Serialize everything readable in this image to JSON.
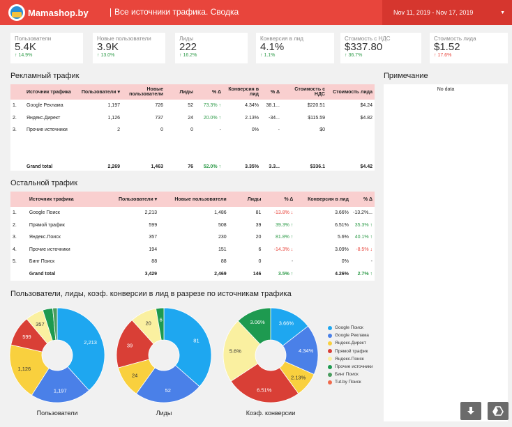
{
  "header": {
    "logo_text": "Mamashop.by",
    "title": "Все источники трафика. Сводка",
    "date_range": "Nov 11, 2019 - Nov 17, 2019"
  },
  "kpis": [
    {
      "label": "Пользователи",
      "value": "5.4K",
      "delta": "↑ 14.9%",
      "dir": "up"
    },
    {
      "label": "Новые пользователи",
      "value": "3.9K",
      "delta": "↑ 13.0%",
      "dir": "up"
    },
    {
      "label": "Лиды",
      "value": "222",
      "delta": "↑ 16.2%",
      "dir": "up"
    },
    {
      "label": "Конверсия в лид",
      "value": "4.1%",
      "delta": "↑ 1.1%",
      "dir": "up"
    },
    {
      "label": "Стоимость с НДС",
      "value": "$337.80",
      "delta": "↑ 36.7%",
      "dir": "up"
    },
    {
      "label": "Стоимость лида",
      "value": "$1.52",
      "delta": "↑ 17.6%",
      "dir": "down"
    }
  ],
  "ads": {
    "title": "Рекламный трафик",
    "headers": [
      "",
      "Источник трафика",
      "Пользователи ▾",
      "Новые пользователи",
      "Лиды",
      "% Δ",
      "Конверсия в лид",
      "% Δ",
      "Стоимость с НДС",
      "Стоимость лида"
    ],
    "rows": [
      [
        "1.",
        "Google Реклама",
        "1,197",
        "726",
        "52",
        "73.3% ↑",
        "4.34%",
        "38.1...",
        "$220.51",
        "$4.24"
      ],
      [
        "2.",
        "Яндекс.Директ",
        "1,126",
        "737",
        "24",
        "20.0% ↑",
        "2.13%",
        "-34...",
        "$115.59",
        "$4.82"
      ],
      [
        "3.",
        "Прочие источники",
        "2",
        "0",
        "0",
        "-",
        "0%",
        "-",
        "$0",
        ""
      ]
    ],
    "total": [
      "",
      "Grand total",
      "2,269",
      "1,463",
      "76",
      "52.0% ↑",
      "3.35%",
      "3.3...",
      "$336.1",
      "$4.42"
    ]
  },
  "note": {
    "title": "Примечание",
    "body": "No data"
  },
  "other": {
    "title": "Остальной трафик",
    "headers": [
      "",
      "Источник трафика",
      "Пользователи ▾",
      "Новые пользователи",
      "Лиды",
      "% Δ",
      "Конверсия в лид",
      "% Δ"
    ],
    "rows": [
      [
        "1.",
        "Google Поиск",
        "2,213",
        "1,486",
        "81",
        "-13.8% ↓",
        "3.66%",
        "-13.2%..."
      ],
      [
        "2.",
        "Прямой трафик",
        "599",
        "508",
        "39",
        "39.3% ↑",
        "6.51%",
        "35.3% ↑"
      ],
      [
        "3.",
        "Яндекс.Поиск",
        "357",
        "230",
        "20",
        "81.8% ↑",
        "5.6%",
        "40.1% ↑"
      ],
      [
        "4.",
        "Прочие источники",
        "194",
        "151",
        "6",
        "-14.3% ↓",
        "3.09%",
        "-8.5% ↓"
      ],
      [
        "5.",
        "Бинг Поиск",
        "88",
        "88",
        "0",
        "-",
        "0%",
        "-"
      ]
    ],
    "total": [
      "",
      "Grand total",
      "3,429",
      "2,469",
      "146",
      "3.5% ↑",
      "4.26%",
      "2.7% ↑"
    ]
  },
  "charts_title": "Пользователи, лиды, коэф. конверсии в лид в разрезе по источникам трафика",
  "chart_data": [
    {
      "type": "pie",
      "title": "Пользователи",
      "categories": [
        "Google Поиск",
        "Google Реклама",
        "Яндекс.Директ",
        "Прямой трафик",
        "Яндекс.Поиск",
        "Прочие источники",
        "Бинг Поиск"
      ],
      "values": [
        2213,
        1197,
        1126,
        599,
        357,
        196,
        88
      ],
      "labels": [
        "2,213",
        "1,197",
        "1,126",
        "599",
        "357",
        "",
        ""
      ]
    },
    {
      "type": "pie",
      "title": "Лиды",
      "categories": [
        "Google Поиск",
        "Google Реклама",
        "Яндекс.Директ",
        "Прямой трафик",
        "Яндекс.Поиск",
        "Прочие источники"
      ],
      "values": [
        81,
        52,
        24,
        39,
        20,
        6
      ],
      "labels": [
        "81",
        "52",
        "24",
        "39",
        "20",
        "6"
      ]
    },
    {
      "type": "pie",
      "title": "Коэф. конверсии",
      "categories": [
        "Google Поиск",
        "Google Реклама",
        "Яндекс.Директ",
        "Прямой трафик",
        "Яндекс.Поиск",
        "Прочие источники"
      ],
      "values": [
        3.66,
        4.34,
        2.13,
        6.51,
        5.6,
        3.06
      ],
      "labels": [
        "3.66%",
        "4.34%",
        "2.13%",
        "6.51%",
        "5.6%",
        "3.06%"
      ]
    }
  ],
  "legend": [
    {
      "name": "Google Поиск",
      "color": "#1ea7f0"
    },
    {
      "name": "Google Реклама",
      "color": "#4a80e8"
    },
    {
      "name": "Яндекс.Директ",
      "color": "#f9d03e"
    },
    {
      "name": "Прямой трафик",
      "color": "#d93f36"
    },
    {
      "name": "Яндекс.Поиск",
      "color": "#faf0a0"
    },
    {
      "name": "Прочие источники",
      "color": "#1e9a50"
    },
    {
      "name": "Бинг Поиск",
      "color": "#4a9d5f"
    },
    {
      "name": "Tut.by Поиск",
      "color": "#f06a4c"
    }
  ]
}
